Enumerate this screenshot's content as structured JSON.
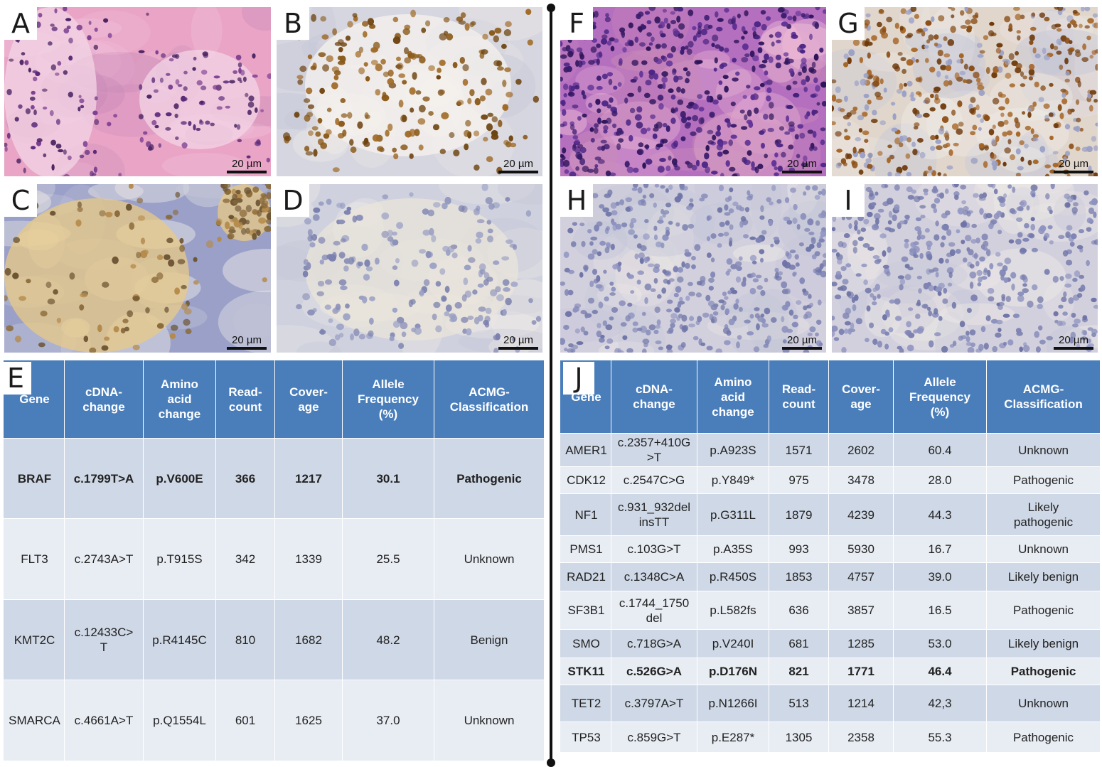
{
  "panels": {
    "A": {
      "label": "A",
      "scale": "20 µm"
    },
    "B": {
      "label": "B",
      "scale": "20 µm"
    },
    "C": {
      "label": "C",
      "scale": "20 µm"
    },
    "D": {
      "label": "D",
      "scale": "20 µm"
    },
    "F": {
      "label": "F",
      "scale": "20 µm"
    },
    "G": {
      "label": "G",
      "scale": "20 µm"
    },
    "H": {
      "label": "H",
      "scale": "20 µm"
    },
    "I": {
      "label": "I",
      "scale": "20 µm"
    }
  },
  "headers": [
    "Gene",
    "cDNA-\nchange",
    "Amino\nacid\nchange",
    "Read-\ncount",
    "Cover-\nage",
    "Allele\nFrequency\n(%)",
    "ACMG-\nClassification"
  ],
  "table_e": {
    "label": "E",
    "rows": [
      [
        "BRAF",
        "c.1799T>A",
        "p.V600E",
        "366",
        "1217",
        "30.1",
        "Pathogenic"
      ],
      [
        "FLT3",
        "c.2743A>T",
        "p.T915S",
        "342",
        "1339",
        "25.5",
        "Unknown"
      ],
      [
        "KMT2C",
        "c.12433C>\nT",
        "p.R4145C",
        "810",
        "1682",
        "48.2",
        "Benign"
      ],
      [
        "SMARCA",
        "c.4661A>T",
        "p.Q1554L",
        "601",
        "1625",
        "37.0",
        "Unknown"
      ]
    ]
  },
  "table_j": {
    "label": "J",
    "rows": [
      [
        "AMER1",
        "c.2357+410G\n>T",
        "p.A923S",
        "1571",
        "2602",
        "60.4",
        "Unknown"
      ],
      [
        "CDK12",
        "c.2547C>G",
        "p.Y849*",
        "975",
        "3478",
        "28.0",
        "Pathogenic"
      ],
      [
        "NF1",
        "c.931_932del\ninsTT",
        "p.G311L",
        "1879",
        "4239",
        "44.3",
        "Likely\npathogenic"
      ],
      [
        "PMS1",
        "c.103G>T",
        "p.A35S",
        "993",
        "5930",
        "16.7",
        "Unknown"
      ],
      [
        "RAD21",
        "c.1348C>A",
        "p.R450S",
        "1853",
        "4757",
        "39.0",
        "Likely benign"
      ],
      [
        "SF3B1",
        "c.1744_1750\ndel",
        "p.L582fs",
        "636",
        "3857",
        "16.5",
        "Pathogenic"
      ],
      [
        "SMO",
        "c.718G>A",
        "p.V240I",
        "681",
        "1285",
        "53.0",
        "Likely benign"
      ],
      [
        "STK11",
        "c.526G>A",
        "p.D176N",
        "821",
        "1771",
        "46.4",
        "Pathogenic"
      ],
      [
        "TET2",
        "c.3797A>T",
        "p.N1266I",
        "513",
        "1214",
        "42,3",
        "Unknown"
      ],
      [
        "TP53",
        "c.859G>T",
        "p.E287*",
        "1305",
        "2358",
        "55.3",
        "Pathogenic"
      ]
    ]
  },
  "colors": {
    "header_blue": "#4a7ebb",
    "row_dark": "#cfd8e6",
    "row_light": "#e8edf4",
    "he_pink": "#e7a3c7",
    "ihc_brown": "#8a5a1a",
    "hematoxylin": "#7f86b8"
  }
}
